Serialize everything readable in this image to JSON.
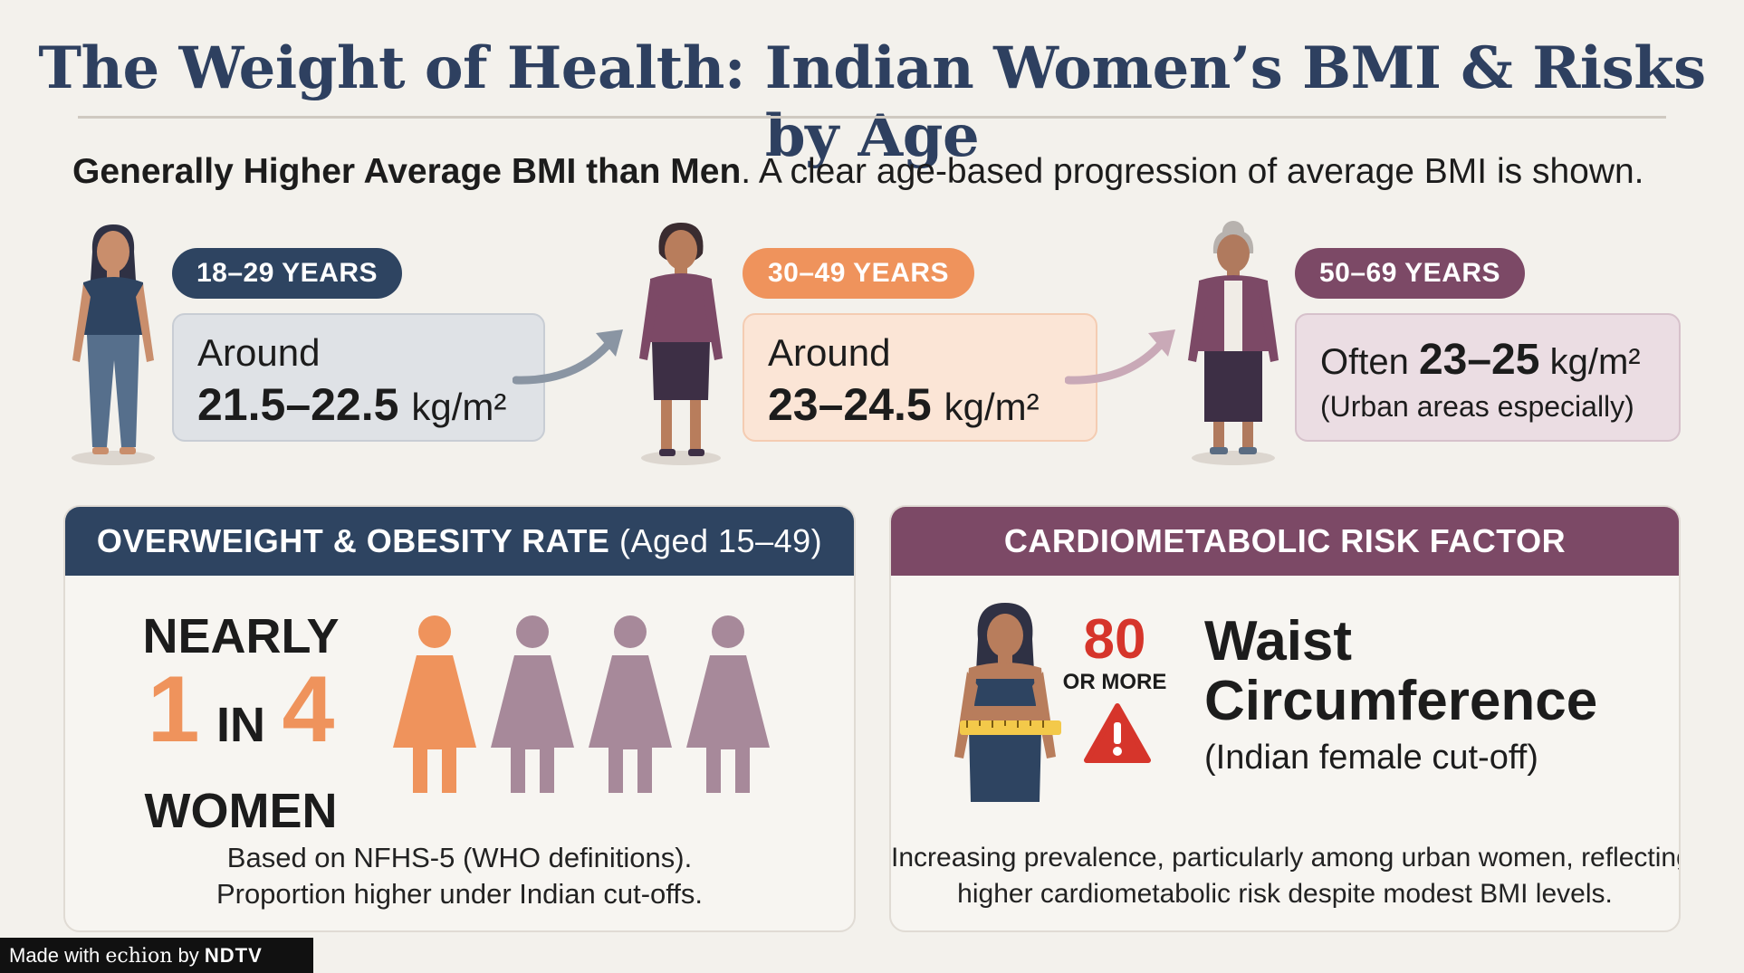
{
  "title": "The Weight of Health: Indian Women’s BMI & Risks by Age",
  "subtitle": {
    "bold": "Generally Higher Average BMI than Men",
    "rest": ". A clear age-based progression of average BMI is shown."
  },
  "age_groups": [
    {
      "label": "18–29 YEARS",
      "line1": "Around",
      "value": "21.5–22.5",
      "unit": "kg/m²",
      "pill_color": "#2e4461",
      "box_color": "#dfe2e6"
    },
    {
      "label": "30–49 YEARS",
      "line1": "Around",
      "value": "23–24.5",
      "unit": "kg/m²",
      "pill_color": "#ef935c",
      "box_color": "#fbe5d6"
    },
    {
      "label": "50–69 YEARS",
      "prefix": "Often",
      "value": "23–25",
      "unit": "kg/m²",
      "note": "(Urban areas especially)",
      "pill_color": "#7c4966",
      "box_color": "#ebdde3"
    }
  ],
  "overweight": {
    "header": "OVERWEIGHT & OBESITY RATE",
    "header_sub": "(Aged 15–49)",
    "nearly": "NEARLY",
    "num1": "1",
    "in": "IN",
    "num2": "4",
    "women": "WOMEN",
    "highlighted_fraction": 0.25,
    "note_line1": "Based on NFHS-5 (WHO definitions).",
    "note_line2": "Proportion higher under Indian cut-offs.",
    "header_color": "#2e4461",
    "accent": "#ef935c",
    "muted": "#a7899a"
  },
  "cardio": {
    "header": "CARDIOMETABOLIC RISK FACTOR",
    "big_number": "80",
    "or_more": "OR MORE",
    "heading_line1": "Waist",
    "heading_line2": "Circumference",
    "subheading": "(Indian female cut-off)",
    "note_line1": "Increasing prevalence, particularly among urban women, reflecting",
    "note_line2": "higher cardiometabolic risk despite modest BMI levels.",
    "header_color": "#7c4966",
    "number_color": "#d6352b",
    "icon": "warning-icon"
  },
  "footer": {
    "prefix": "Made with",
    "brand1": "echion",
    "by": "by",
    "brand2": "NDTV"
  }
}
